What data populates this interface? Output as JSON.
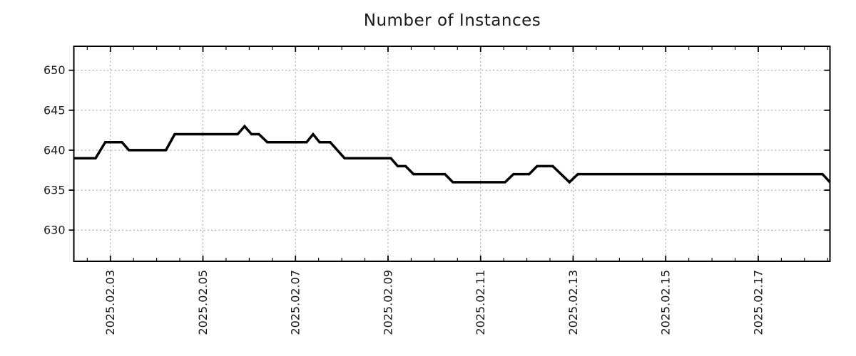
{
  "window": {
    "background": "#ffffff"
  },
  "chart_data": {
    "type": "line",
    "title": "Number of Instances",
    "legend": "none",
    "x_axis": {
      "unit": "days since 2025-02-03 00:00",
      "range": [
        -0.79,
        15.55
      ],
      "major_ticks": [
        {
          "t": 0,
          "label": "2025.02.03"
        },
        {
          "t": 2,
          "label": "2025.02.05"
        },
        {
          "t": 4,
          "label": "2025.02.07"
        },
        {
          "t": 6,
          "label": "2025.02.09"
        },
        {
          "t": 8,
          "label": "2025.02.11"
        },
        {
          "t": 10,
          "label": "2025.02.13"
        },
        {
          "t": 12,
          "label": "2025.02.15"
        },
        {
          "t": 14,
          "label": "2025.02.17"
        }
      ],
      "minor_tick_step": 0.5,
      "label_rotation_deg": -90
    },
    "y_axis": {
      "range": [
        626.1,
        653.0
      ],
      "ticks": [
        630,
        635,
        640,
        645,
        650
      ]
    },
    "grid": {
      "visible": true,
      "style": "dotted",
      "color": "#999999"
    },
    "series": [
      {
        "name": "instances",
        "color": "#000000",
        "points": [
          [
            -0.79,
            639
          ],
          [
            -0.32,
            639
          ],
          [
            -0.11,
            641
          ],
          [
            0.25,
            641
          ],
          [
            0.4,
            640
          ],
          [
            1.2,
            640
          ],
          [
            1.39,
            642
          ],
          [
            2.75,
            642
          ],
          [
            2.9,
            643
          ],
          [
            3.05,
            642
          ],
          [
            3.21,
            642
          ],
          [
            3.39,
            641
          ],
          [
            4.24,
            641
          ],
          [
            4.38,
            642
          ],
          [
            4.52,
            641
          ],
          [
            4.75,
            641
          ],
          [
            5.06,
            639
          ],
          [
            6.06,
            639
          ],
          [
            6.21,
            638
          ],
          [
            6.38,
            638
          ],
          [
            6.55,
            637
          ],
          [
            7.23,
            637
          ],
          [
            7.4,
            636
          ],
          [
            8.53,
            636
          ],
          [
            8.71,
            637
          ],
          [
            9.05,
            637
          ],
          [
            9.22,
            638
          ],
          [
            9.56,
            638
          ],
          [
            9.92,
            636
          ],
          [
            10.1,
            637
          ],
          [
            15.39,
            637
          ],
          [
            15.55,
            636
          ]
        ]
      }
    ],
    "styles": {
      "line_width": 3.5,
      "border_color": "#000000",
      "grid_color": "#999999",
      "text_color": "#1a1a1a",
      "background": "#ffffff"
    }
  }
}
